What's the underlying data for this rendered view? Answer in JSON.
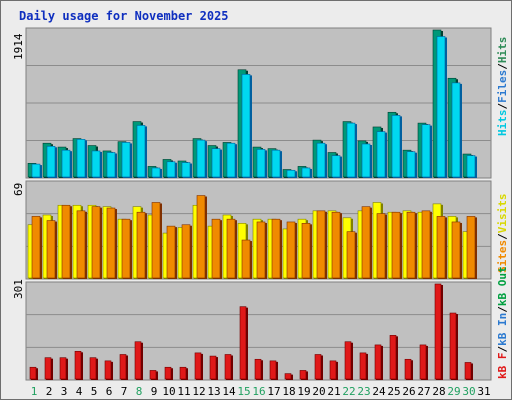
{
  "title": "Daily usage for November 2025",
  "colors": {
    "hits": "#00d8f0",
    "hits_dark": "#006838",
    "files": "#00d8f0",
    "sites": "#f08a00",
    "visits": "#ffff00",
    "kbin": "#2c7ad0",
    "kbout": "#00a040",
    "kbf": "#e01818",
    "weekend": "#20a060",
    "weekday": "#000000",
    "panel_bg": "#c0c0c0"
  },
  "legend": {
    "hits": "Hits",
    "files": "Files",
    "sites": "Sites",
    "visits": "Visits",
    "kbin": "kB In",
    "kbout": "kB Out",
    "kbf": "kB F",
    "sep": "/"
  },
  "chart_data": [
    {
      "type": "bar",
      "panel": "top",
      "ymax_label": "1914",
      "ylim": [
        0,
        1914
      ],
      "categories": [
        "1",
        "2",
        "3",
        "4",
        "5",
        "6",
        "7",
        "8",
        "9",
        "10",
        "11",
        "12",
        "13",
        "14",
        "15",
        "16",
        "17",
        "18",
        "19",
        "20",
        "21",
        "22",
        "23",
        "24",
        "25",
        "26",
        "27",
        "28",
        "29",
        "30",
        "31"
      ],
      "weekend_days": [
        "1",
        "8",
        "15",
        "16",
        "22",
        "23",
        "29",
        "30"
      ],
      "series": [
        {
          "name": "Hits",
          "values": [
            190,
            450,
            400,
            510,
            420,
            350,
            470,
            730,
            150,
            240,
            220,
            510,
            420,
            460,
            1400,
            400,
            380,
            110,
            150,
            490,
            330,
            730,
            480,
            660,
            850,
            360,
            710,
            1914,
            1290,
            310,
            0
          ]
        },
        {
          "name": "Files",
          "values": [
            180,
            410,
            360,
            500,
            350,
            330,
            460,
            680,
            130,
            210,
            200,
            490,
            380,
            450,
            1340,
            370,
            360,
            100,
            130,
            450,
            290,
            710,
            440,
            600,
            810,
            340,
            690,
            1830,
            1230,
            290,
            0
          ]
        }
      ]
    },
    {
      "type": "bar",
      "panel": "middle",
      "ymax_label": "69",
      "ylim": [
        0,
        69
      ],
      "categories": [
        "1",
        "2",
        "3",
        "4",
        "5",
        "6",
        "7",
        "8",
        "9",
        "10",
        "11",
        "12",
        "13",
        "14",
        "15",
        "16",
        "17",
        "18",
        "19",
        "20",
        "21",
        "22",
        "23",
        "24",
        "25",
        "26",
        "27",
        "28",
        "29",
        "30",
        "31"
      ],
      "series": [
        {
          "name": "Visits",
          "values": [
            39,
            46,
            53,
            53,
            53,
            52,
            43,
            52,
            46,
            33,
            37,
            53,
            38,
            46,
            40,
            43,
            43,
            36,
            43,
            49,
            49,
            44,
            49,
            55,
            48,
            49,
            48,
            54,
            45,
            34,
            0
          ]
        },
        {
          "name": "Sites",
          "values": [
            45,
            42,
            53,
            49,
            52,
            51,
            43,
            48,
            55,
            38,
            39,
            60,
            43,
            43,
            28,
            41,
            43,
            41,
            40,
            49,
            48,
            34,
            52,
            47,
            48,
            48,
            49,
            45,
            41,
            45,
            0
          ]
        }
      ]
    },
    {
      "type": "bar",
      "panel": "bottom",
      "ymax_label": "301",
      "ylim": [
        0,
        301
      ],
      "categories": [
        "1",
        "2",
        "3",
        "4",
        "5",
        "6",
        "7",
        "8",
        "9",
        "10",
        "11",
        "12",
        "13",
        "14",
        "15",
        "16",
        "17",
        "18",
        "19",
        "20",
        "21",
        "22",
        "23",
        "24",
        "25",
        "26",
        "27",
        "28",
        "29",
        "30",
        "31"
      ],
      "series": [
        {
          "name": "kB F",
          "values": [
            40,
            70,
            70,
            90,
            70,
            60,
            80,
            120,
            30,
            40,
            40,
            85,
            75,
            80,
            230,
            65,
            60,
            20,
            30,
            80,
            60,
            120,
            85,
            110,
            140,
            65,
            110,
            301,
            210,
            55,
            0
          ]
        }
      ]
    }
  ]
}
